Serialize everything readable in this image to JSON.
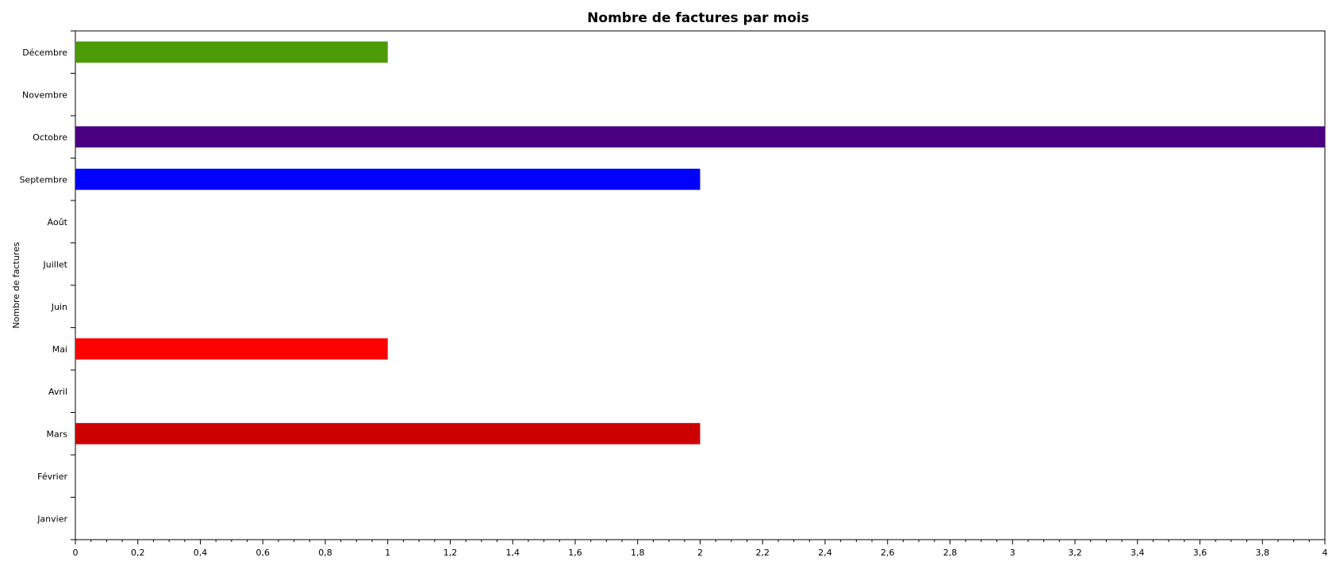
{
  "chart_data": {
    "type": "bar",
    "orientation": "horizontal",
    "title": "Nombre de factures par mois",
    "ylabel": "Nombre de factures",
    "xlabel": "",
    "categories": [
      "Janvier",
      "Février",
      "Mars",
      "Avril",
      "Mai",
      "Juin",
      "Juillet",
      "Août",
      "Septembre",
      "Octobre",
      "Novembre",
      "Décembre"
    ],
    "values": [
      0,
      0,
      2,
      0,
      1,
      0,
      0,
      0,
      2,
      4,
      0,
      1
    ],
    "colors": [
      "#cccccc",
      "#cccccc",
      "#cc0000",
      "#cccccc",
      "#ff0000",
      "#cccccc",
      "#cccccc",
      "#cccccc",
      "#0000ff",
      "#4b0082",
      "#cccccc",
      "#4c9a06"
    ],
    "xlim": [
      0,
      4
    ],
    "x_ticks": [
      "0",
      "0,2",
      "0,4",
      "0,6",
      "0,8",
      "1",
      "1,2",
      "1,4",
      "1,6",
      "1,8",
      "2",
      "2,2",
      "2,4",
      "2,6",
      "2,8",
      "3",
      "3,2",
      "3,4",
      "3,6",
      "3,8",
      "4"
    ],
    "grid": false,
    "legend": "none"
  }
}
